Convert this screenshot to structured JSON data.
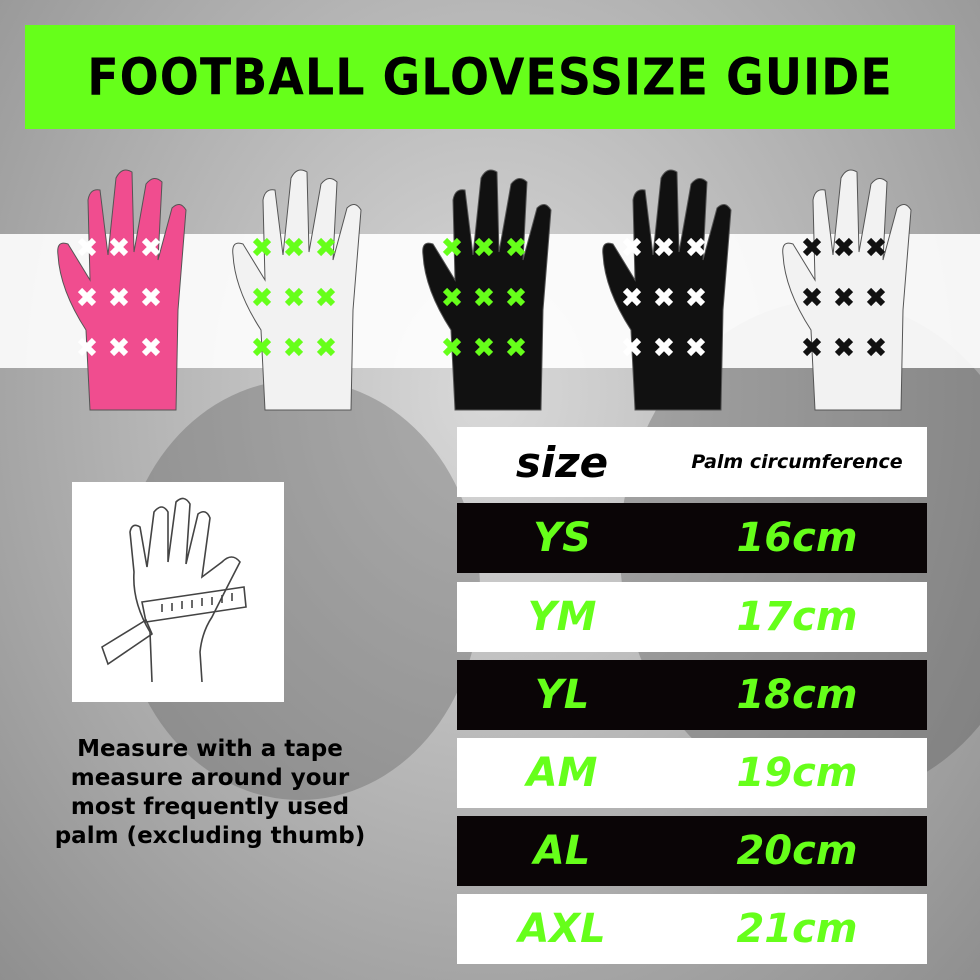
{
  "title": "FOOTBALL GLOVESSIZE GUIDE",
  "colors": {
    "accent": "#66ff1a",
    "dark_row": "#0a0506",
    "light_row": "#ffffff"
  },
  "gloves": [
    {
      "name": "pink-diamond-glove",
      "base": "#f04d8f",
      "pattern": "#ffffff"
    },
    {
      "name": "white-green-x-glove",
      "base": "#f2f2f2",
      "pattern": "#66ff1a"
    },
    {
      "name": "black-green-x-glove",
      "base": "#111111",
      "pattern": "#66ff1a"
    },
    {
      "name": "black-white-bolt-glove",
      "base": "#111111",
      "pattern": "#ffffff"
    },
    {
      "name": "white-black-bolt-glove",
      "base": "#f2f2f2",
      "pattern": "#111111"
    }
  ],
  "measure_caption": "Measure with a tape measure around your most frequently used palm (excluding thumb)",
  "table": {
    "headers": {
      "size": "size",
      "palm": "Palm circumference"
    },
    "rows": [
      {
        "size": "YS",
        "palm": "16cm"
      },
      {
        "size": "YM",
        "palm": "17cm"
      },
      {
        "size": "YL",
        "palm": "18cm"
      },
      {
        "size": "AM",
        "palm": "19cm"
      },
      {
        "size": "AL",
        "palm": "20cm"
      },
      {
        "size": "AXL",
        "palm": "21cm"
      }
    ]
  }
}
